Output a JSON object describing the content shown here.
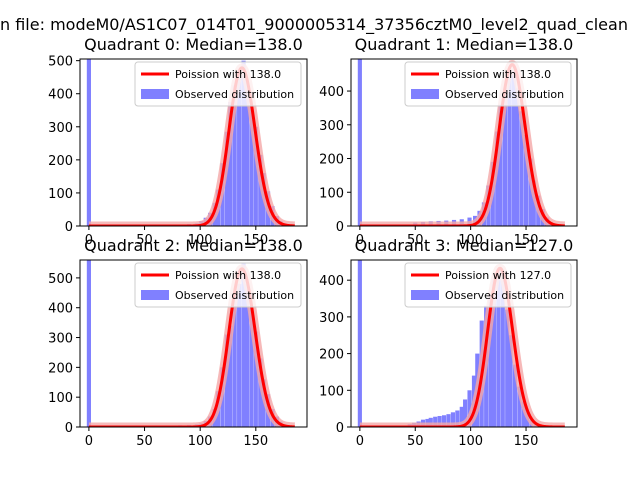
{
  "figure": {
    "suptitle": "n file: modeM0/AS1C07_014T01_9000005314_37356cztM0_level2_quad_clean"
  },
  "colors": {
    "bars": "#8080ff",
    "fit_line": "#ff0000",
    "fit_line_halo": "#f4a8a8",
    "axis": "#000000"
  },
  "chart_data": [
    {
      "type": "bar",
      "title": "Quadrant 0: Median=138.0",
      "xlim": [
        -8,
        196
      ],
      "ylim": [
        0,
        505
      ],
      "xticks": [
        0,
        50,
        100,
        150
      ],
      "yticks": [
        0,
        100,
        200,
        300,
        400,
        500
      ],
      "grid": false,
      "legend": {
        "placement": "top-right",
        "entries": [
          "Poission with 138.0",
          "Observed distribution"
        ]
      },
      "poisson_mean": 138.0,
      "poisson_peak": 478,
      "bin_width": 3.75,
      "bins": [
        {
          "x": 0,
          "y": 510
        },
        {
          "x": 75,
          "y": 3
        },
        {
          "x": 82,
          "y": 4
        },
        {
          "x": 90,
          "y": 6
        },
        {
          "x": 97,
          "y": 8
        },
        {
          "x": 101,
          "y": 15
        },
        {
          "x": 105,
          "y": 25
        },
        {
          "x": 109,
          "y": 40
        },
        {
          "x": 113,
          "y": 70
        },
        {
          "x": 116,
          "y": 110
        },
        {
          "x": 120,
          "y": 190
        },
        {
          "x": 124,
          "y": 285
        },
        {
          "x": 127,
          "y": 375
        },
        {
          "x": 131,
          "y": 425
        },
        {
          "x": 135,
          "y": 455
        },
        {
          "x": 139,
          "y": 500
        },
        {
          "x": 142,
          "y": 440
        },
        {
          "x": 146,
          "y": 365
        },
        {
          "x": 150,
          "y": 300
        },
        {
          "x": 154,
          "y": 215
        },
        {
          "x": 157,
          "y": 160
        },
        {
          "x": 161,
          "y": 105
        },
        {
          "x": 165,
          "y": 60
        },
        {
          "x": 169,
          "y": 30
        },
        {
          "x": 172,
          "y": 15
        },
        {
          "x": 176,
          "y": 8
        },
        {
          "x": 180,
          "y": 4
        }
      ]
    },
    {
      "type": "bar",
      "title": "Quadrant 1: Median=138.0",
      "xlim": [
        -8,
        196
      ],
      "ylim": [
        0,
        495
      ],
      "xticks": [
        0,
        50,
        100,
        150
      ],
      "yticks": [
        0,
        100,
        200,
        300,
        400
      ],
      "grid": false,
      "legend": {
        "placement": "top-right",
        "entries": [
          "Poission with 138.0",
          "Observed distribution"
        ]
      },
      "poisson_mean": 138.0,
      "poisson_peak": 478,
      "bin_width": 3.75,
      "bins": [
        {
          "x": 0,
          "y": 495
        },
        {
          "x": 50,
          "y": 10
        },
        {
          "x": 57,
          "y": 12
        },
        {
          "x": 64,
          "y": 14
        },
        {
          "x": 71,
          "y": 15
        },
        {
          "x": 78,
          "y": 16
        },
        {
          "x": 85,
          "y": 18
        },
        {
          "x": 92,
          "y": 20
        },
        {
          "x": 99,
          "y": 25
        },
        {
          "x": 104,
          "y": 30
        },
        {
          "x": 108,
          "y": 45
        },
        {
          "x": 112,
          "y": 70
        },
        {
          "x": 116,
          "y": 120
        },
        {
          "x": 120,
          "y": 190
        },
        {
          "x": 124,
          "y": 280
        },
        {
          "x": 127,
          "y": 360
        },
        {
          "x": 131,
          "y": 410
        },
        {
          "x": 135,
          "y": 445
        },
        {
          "x": 139,
          "y": 460
        },
        {
          "x": 142,
          "y": 410
        },
        {
          "x": 146,
          "y": 340
        },
        {
          "x": 150,
          "y": 270
        },
        {
          "x": 154,
          "y": 200
        },
        {
          "x": 157,
          "y": 135
        },
        {
          "x": 161,
          "y": 90
        },
        {
          "x": 165,
          "y": 50
        },
        {
          "x": 169,
          "y": 25
        },
        {
          "x": 172,
          "y": 12
        },
        {
          "x": 176,
          "y": 6
        }
      ]
    },
    {
      "type": "bar",
      "title": "Quadrant 2: Median=138.0",
      "xlim": [
        -8,
        196
      ],
      "ylim": [
        0,
        560
      ],
      "xticks": [
        0,
        50,
        100,
        150
      ],
      "yticks": [
        0,
        100,
        200,
        300,
        400,
        500
      ],
      "grid": false,
      "legend": {
        "placement": "top-right",
        "entries": [
          "Poission with 138.0",
          "Observed distribution"
        ]
      },
      "poisson_mean": 138.0,
      "poisson_peak": 530,
      "bin_width": 3.75,
      "bins": [
        {
          "x": 0,
          "y": 560
        },
        {
          "x": 75,
          "y": 5
        },
        {
          "x": 82,
          "y": 6
        },
        {
          "x": 90,
          "y": 7
        },
        {
          "x": 97,
          "y": 9
        },
        {
          "x": 101,
          "y": 12
        },
        {
          "x": 105,
          "y": 20
        },
        {
          "x": 109,
          "y": 35
        },
        {
          "x": 113,
          "y": 60
        },
        {
          "x": 116,
          "y": 120
        },
        {
          "x": 120,
          "y": 200
        },
        {
          "x": 124,
          "y": 310
        },
        {
          "x": 127,
          "y": 340
        },
        {
          "x": 131,
          "y": 440
        },
        {
          "x": 135,
          "y": 480
        },
        {
          "x": 139,
          "y": 550
        },
        {
          "x": 142,
          "y": 480
        },
        {
          "x": 146,
          "y": 400
        },
        {
          "x": 150,
          "y": 320
        },
        {
          "x": 154,
          "y": 230
        },
        {
          "x": 157,
          "y": 160
        },
        {
          "x": 161,
          "y": 110
        },
        {
          "x": 165,
          "y": 60
        },
        {
          "x": 169,
          "y": 35
        },
        {
          "x": 172,
          "y": 18
        },
        {
          "x": 176,
          "y": 8
        }
      ]
    },
    {
      "type": "bar",
      "title": "Quadrant 3: Median=127.0",
      "xlim": [
        -8,
        196
      ],
      "ylim": [
        0,
        455
      ],
      "xticks": [
        0,
        50,
        100,
        150
      ],
      "yticks": [
        0,
        100,
        200,
        300,
        400
      ],
      "grid": false,
      "legend": {
        "placement": "top-right",
        "entries": [
          "Poission with 127.0",
          "Observed distribution"
        ]
      },
      "poisson_mean": 127.0,
      "poisson_peak": 432,
      "bin_width": 3.75,
      "bins": [
        {
          "x": 0,
          "y": 455
        },
        {
          "x": 45,
          "y": 8
        },
        {
          "x": 49,
          "y": 12
        },
        {
          "x": 53,
          "y": 15
        },
        {
          "x": 57,
          "y": 20
        },
        {
          "x": 61,
          "y": 22
        },
        {
          "x": 64,
          "y": 25
        },
        {
          "x": 68,
          "y": 28
        },
        {
          "x": 72,
          "y": 30
        },
        {
          "x": 76,
          "y": 32
        },
        {
          "x": 80,
          "y": 35
        },
        {
          "x": 84,
          "y": 40
        },
        {
          "x": 88,
          "y": 45
        },
        {
          "x": 92,
          "y": 55
        },
        {
          "x": 95,
          "y": 75
        },
        {
          "x": 99,
          "y": 100
        },
        {
          "x": 103,
          "y": 140
        },
        {
          "x": 106,
          "y": 200
        },
        {
          "x": 110,
          "y": 290
        },
        {
          "x": 114,
          "y": 330
        },
        {
          "x": 118,
          "y": 360
        },
        {
          "x": 121,
          "y": 400
        },
        {
          "x": 125,
          "y": 430
        },
        {
          "x": 129,
          "y": 400
        },
        {
          "x": 133,
          "y": 320
        },
        {
          "x": 136,
          "y": 250
        },
        {
          "x": 140,
          "y": 170
        },
        {
          "x": 144,
          "y": 110
        },
        {
          "x": 148,
          "y": 70
        },
        {
          "x": 151,
          "y": 40
        },
        {
          "x": 155,
          "y": 20
        },
        {
          "x": 159,
          "y": 10
        },
        {
          "x": 163,
          "y": 5
        }
      ]
    }
  ]
}
